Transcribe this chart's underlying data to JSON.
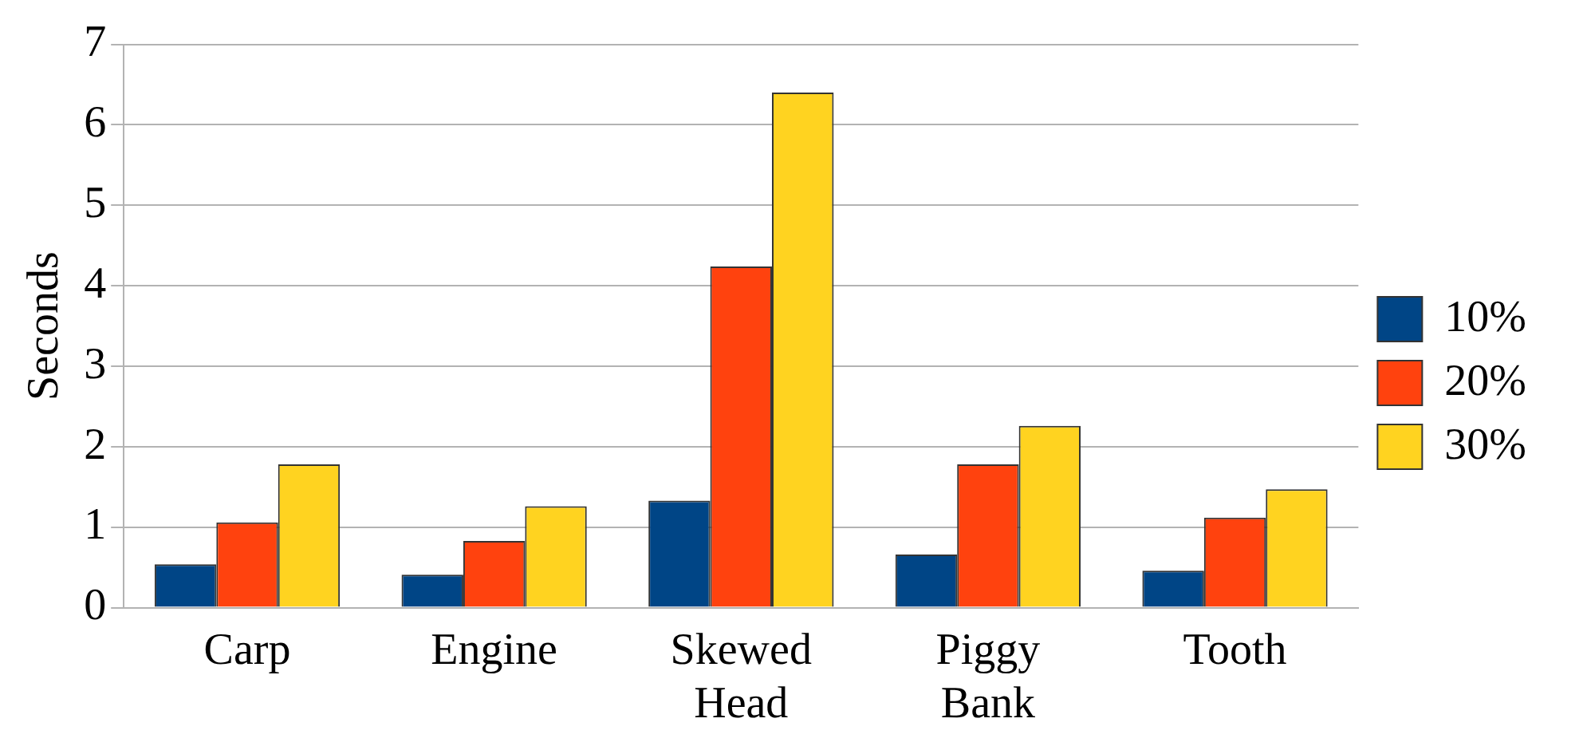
{
  "chart_data": {
    "type": "bar",
    "ylabel": "Seconds",
    "categories": [
      "Carp",
      "Engine",
      "Skewed Head",
      "Piggy Bank",
      "Tooth"
    ],
    "series": [
      {
        "name": "10%",
        "color": "#004586",
        "values": [
          0.54,
          0.41,
          1.33,
          0.66,
          0.46
        ]
      },
      {
        "name": "20%",
        "color": "#ff420e",
        "values": [
          1.06,
          0.83,
          4.24,
          1.78,
          1.12
        ]
      },
      {
        "name": "30%",
        "color": "#ffd320",
        "values": [
          1.78,
          1.26,
          6.4,
          2.26,
          1.47
        ]
      }
    ],
    "ylim": [
      0,
      7
    ],
    "yticks": [
      0,
      1,
      2,
      3,
      4,
      5,
      6,
      7
    ],
    "grid": "y",
    "legend": "right"
  }
}
